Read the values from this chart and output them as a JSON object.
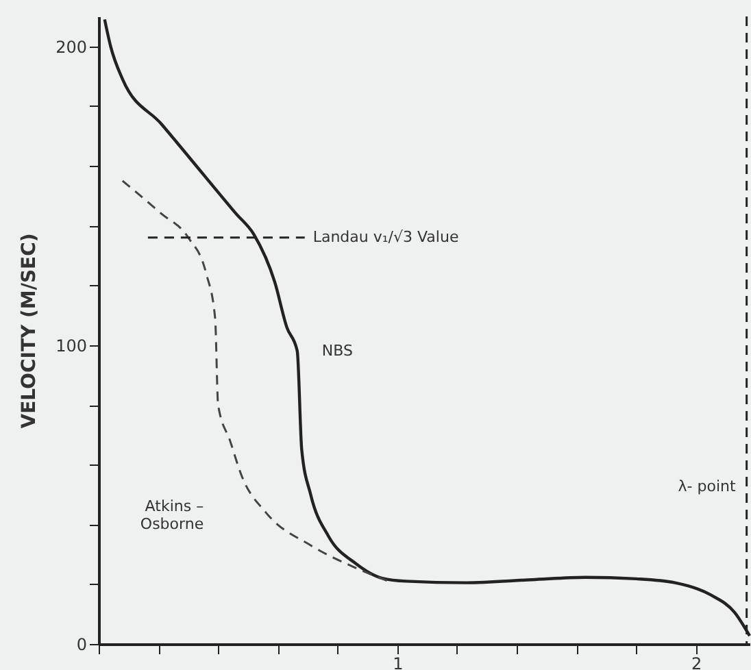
{
  "chart_data": {
    "type": "line",
    "ylabel": "VELOCITY (M/SEC)",
    "xlim": [
      0,
      2.18
    ],
    "ylim": [
      0,
      210
    ],
    "xticks": [
      {
        "value": 0,
        "label": null
      },
      {
        "value": 0.2,
        "label": null
      },
      {
        "value": 0.4,
        "label": null
      },
      {
        "value": 0.6,
        "label": null
      },
      {
        "value": 0.8,
        "label": null
      },
      1,
      {
        "value": 1.2,
        "label": null
      },
      {
        "value": 1.4,
        "label": null
      },
      {
        "value": 1.6,
        "label": null
      },
      {
        "value": 1.8,
        "label": null
      },
      2
    ],
    "yticks": [
      0,
      {
        "value": 20,
        "label": null
      },
      {
        "value": 40,
        "label": null
      },
      {
        "value": 60,
        "label": null
      },
      {
        "value": 80,
        "label": null
      },
      100,
      {
        "value": 120,
        "label": null
      },
      {
        "value": 140,
        "label": null
      },
      {
        "value": 160,
        "label": null
      },
      {
        "value": 180,
        "label": null
      },
      200
    ],
    "grid": false,
    "marker": "none",
    "series": [
      {
        "name": "NBS",
        "color": "#222222",
        "line_style": "solid",
        "x": [
          0.02,
          0.04,
          0.08,
          0.21,
          0.36,
          0.46,
          0.52,
          0.59,
          0.63,
          0.665,
          0.68,
          0.71,
          0.77,
          0.86,
          0.95,
          1.03,
          1.23,
          1.45,
          1.63,
          1.8,
          1.93,
          2.05,
          2.13,
          2.18
        ],
        "values": [
          209,
          200,
          189,
          174,
          156,
          144,
          137,
          121,
          106,
          98,
          65,
          50,
          36,
          27,
          22,
          21,
          20.5,
          21.5,
          22.3,
          21.8,
          20.5,
          16.4,
          10.5,
          2.7
        ]
      },
      {
        "name": "Atkins – Osborne",
        "color": "#444444",
        "line_style": "dashed",
        "x": [
          0.08,
          0.21,
          0.3,
          0.36,
          0.39,
          0.4,
          0.44,
          0.48,
          0.56,
          0.71,
          0.86,
          0.97
        ],
        "values": [
          155,
          144,
          136,
          124,
          109,
          80,
          68,
          56,
          44,
          33,
          25.5,
          21
        ]
      },
      {
        "name": "Landau v₁/√3 Value",
        "color": "#222222",
        "line_style": "dashed",
        "x": [
          0.165,
          0.69
        ],
        "values": [
          136,
          136
        ]
      }
    ],
    "ref_lines": [
      {
        "axis": "x",
        "value": 2.17,
        "label": "λ- point",
        "color": "#222222",
        "line_style": "dashed"
      }
    ]
  }
}
